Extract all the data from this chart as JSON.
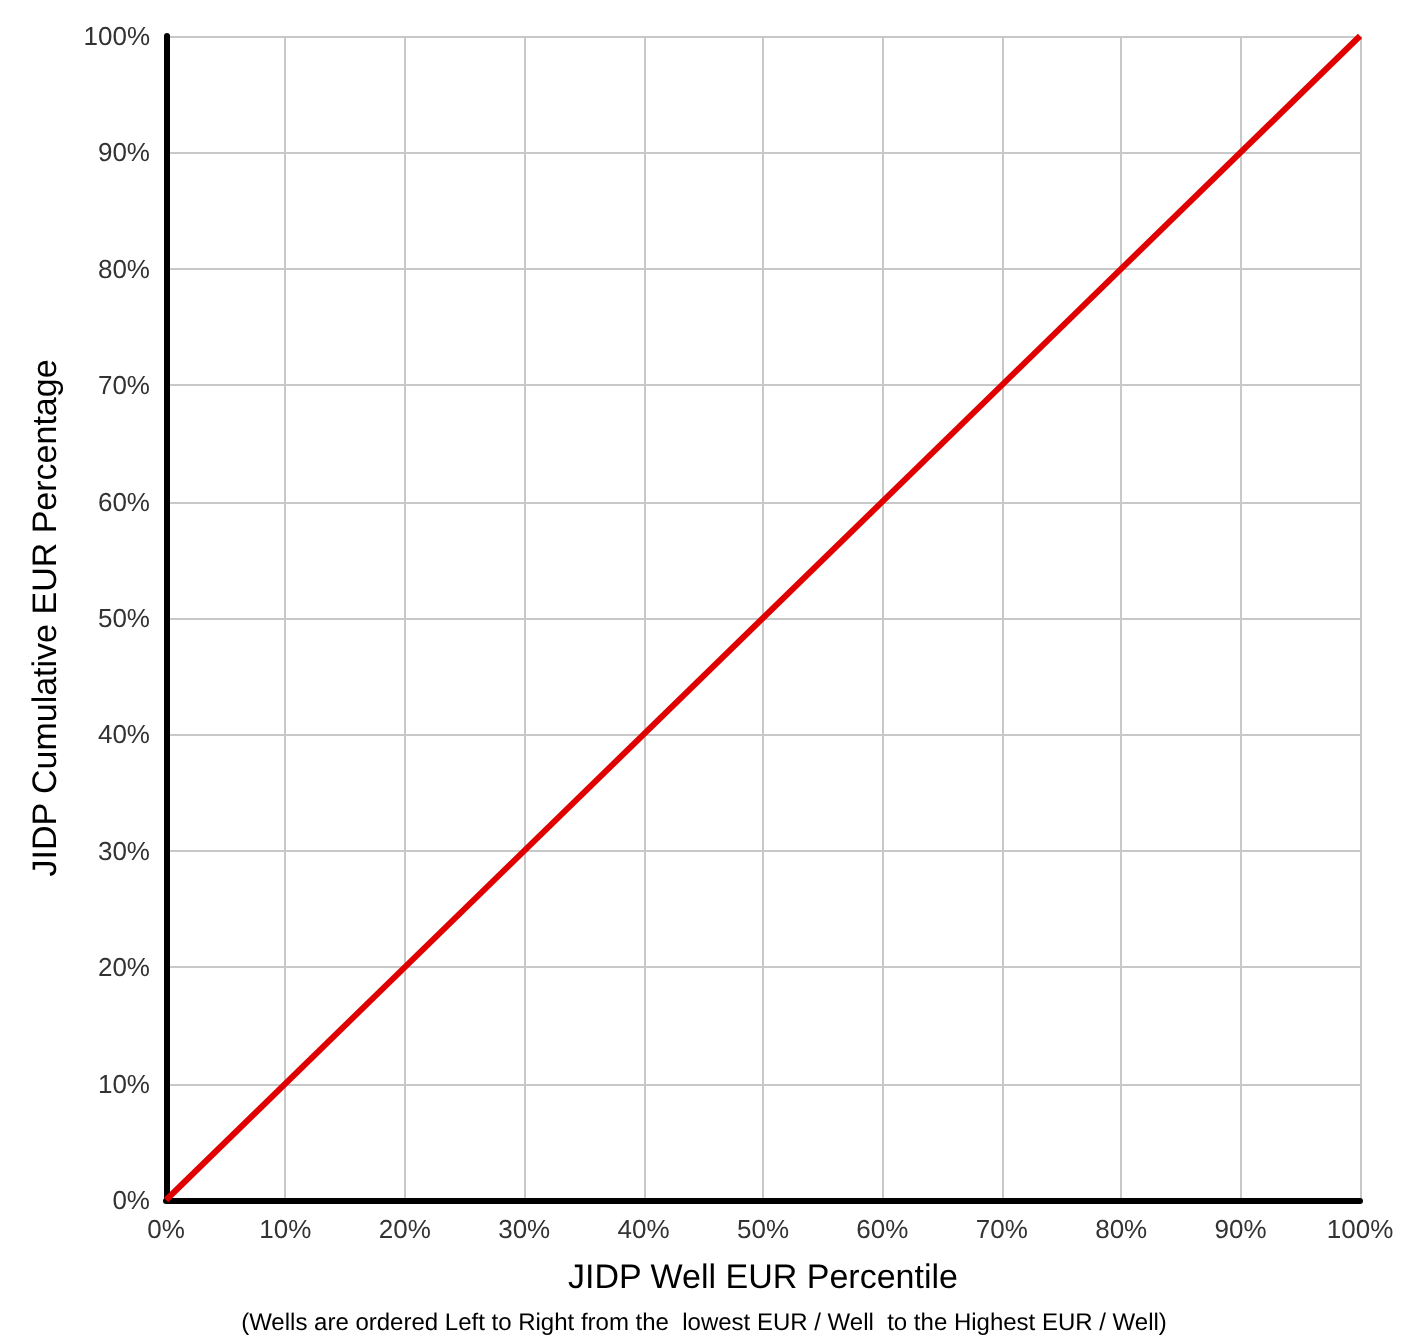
{
  "chart_data": {
    "type": "line",
    "xlabel": "JIDP Well EUR Percentile",
    "ylabel": "JIDP Cumulative EUR Percentage",
    "annotations": [
      "(Wells are ordered Left to Right from the  lowest EUR / Well  to the Highest EUR / Well)"
    ],
    "x": [
      0,
      100
    ],
    "series": [
      {
        "color": "#e00000",
        "values": [
          0,
          100
        ]
      }
    ],
    "xlim": [
      0,
      100
    ],
    "ylim": [
      0,
      100
    ],
    "xticks": [
      {
        "value": 0,
        "label": "0%"
      },
      {
        "value": 10,
        "label": "10%"
      },
      {
        "value": 20,
        "label": "20%"
      },
      {
        "value": 30,
        "label": "30%"
      },
      {
        "value": 40,
        "label": "40%"
      },
      {
        "value": 50,
        "label": "50%"
      },
      {
        "value": 60,
        "label": "60%"
      },
      {
        "value": 70,
        "label": "70%"
      },
      {
        "value": 80,
        "label": "80%"
      },
      {
        "value": 90,
        "label": "90%"
      },
      {
        "value": 100,
        "label": "100%"
      }
    ],
    "yticks": [
      {
        "value": 0,
        "label": "0%"
      },
      {
        "value": 10,
        "label": "10%"
      },
      {
        "value": 20,
        "label": "20%"
      },
      {
        "value": 30,
        "label": "30%"
      },
      {
        "value": 40,
        "label": "40%"
      },
      {
        "value": 50,
        "label": "50%"
      },
      {
        "value": 60,
        "label": "60%"
      },
      {
        "value": 70,
        "label": "70%"
      },
      {
        "value": 80,
        "label": "80%"
      },
      {
        "value": 90,
        "label": "90%"
      },
      {
        "value": 100,
        "label": "100%"
      }
    ],
    "grid": true
  }
}
